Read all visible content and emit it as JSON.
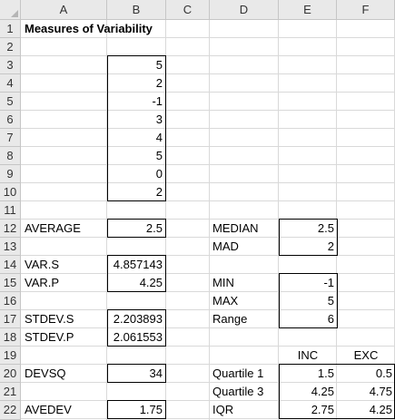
{
  "columns": [
    "A",
    "B",
    "C",
    "D",
    "E",
    "F"
  ],
  "rows": [
    "1",
    "2",
    "3",
    "4",
    "5",
    "6",
    "7",
    "8",
    "9",
    "10",
    "11",
    "12",
    "13",
    "14",
    "15",
    "16",
    "17",
    "18",
    "19",
    "20",
    "21",
    "22"
  ],
  "title": "Measures of Variability",
  "data_values": [
    "5",
    "2",
    "-1",
    "3",
    "4",
    "5",
    "0",
    "2"
  ],
  "labels": {
    "average": "AVERAGE",
    "var_s": "VAR.S",
    "var_p": "VAR.P",
    "stdev_s": "STDEV.S",
    "stdev_p": "STDEV.P",
    "devsq": "DEVSQ",
    "avedev": "AVEDEV",
    "median": "MEDIAN",
    "mad": "MAD",
    "min": "MIN",
    "max": "MAX",
    "range": "Range",
    "inc": "INC",
    "exc": "EXC",
    "quartile1": "Quartile 1",
    "quartile3": "Quartile 3",
    "iqr": "IQR"
  },
  "values": {
    "average": "2.5",
    "var_s": "4.857143",
    "var_p": "4.25",
    "stdev_s": "2.203893",
    "stdev_p": "2.061553",
    "devsq": "34",
    "avedev": "1.75",
    "median": "2.5",
    "mad": "2",
    "min": "-1",
    "max": "5",
    "range": "6",
    "quartile1_inc": "1.5",
    "quartile1_exc": "0.5",
    "quartile3_inc": "4.25",
    "quartile3_exc": "4.75",
    "iqr_inc": "2.75",
    "iqr_exc": "4.25"
  }
}
